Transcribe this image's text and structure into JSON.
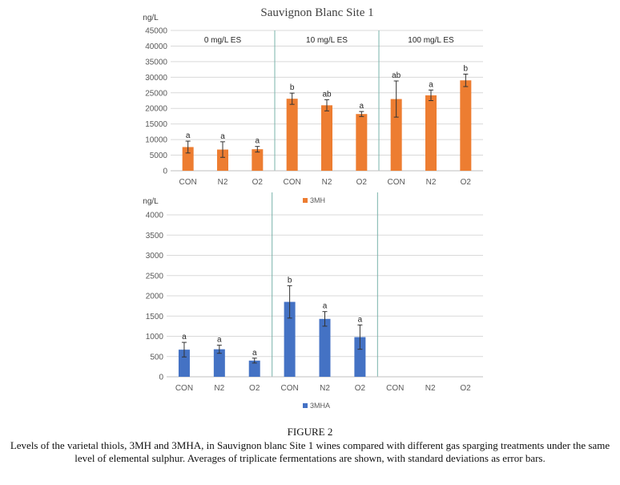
{
  "figure": {
    "label": "FIGURE 2",
    "caption": "Levels of the varietal thiols, 3MH and 3MHA, in Sauvignon blanc Site 1 wines compared with different gas sparging treatments under the same level of elemental sulphur. Averages of triplicate fermentations are shown, with standard deviations as error bars."
  },
  "chart_data": [
    {
      "type": "bar",
      "title": "Sauvignon Blanc Site 1",
      "ylabel": "ng/L",
      "ylim": [
        0,
        45000
      ],
      "yticks": [
        "0",
        "5000",
        "10000",
        "15000",
        "20000",
        "25000",
        "30000",
        "35000",
        "40000",
        "45000"
      ],
      "groups": [
        "0 mg/L ES",
        "10 mg/L ES",
        "100 mg/L ES"
      ],
      "categories": [
        "CON",
        "N2",
        "O2",
        "CON",
        "N2",
        "O2",
        "CON",
        "N2",
        "O2"
      ],
      "series": [
        {
          "name": "3MH",
          "color": "#ed7d31",
          "values": [
            7600,
            6800,
            6900,
            23100,
            21000,
            18200,
            23000,
            24200,
            29000
          ],
          "errors": [
            1900,
            2500,
            900,
            1800,
            1800,
            800,
            5800,
            1700,
            2000
          ],
          "labels": [
            "a",
            "a",
            "a",
            "b",
            "ab",
            "a",
            "ab",
            "a",
            "b"
          ]
        }
      ],
      "legend": "bottom",
      "grid": true
    },
    {
      "type": "bar",
      "ylabel": "ng/L",
      "ylim": [
        0,
        4000
      ],
      "yticks": [
        "0",
        "500",
        "1000",
        "1500",
        "2000",
        "2500",
        "3000",
        "3500",
        "4000"
      ],
      "categories": [
        "CON",
        "N2",
        "O2",
        "CON",
        "N2",
        "O2",
        "CON",
        "N2",
        "O2"
      ],
      "series": [
        {
          "name": "3MHA",
          "color": "#4472c4",
          "values": [
            670,
            680,
            400,
            1850,
            1430,
            980,
            null,
            null,
            null
          ],
          "errors": [
            180,
            100,
            60,
            400,
            180,
            300,
            null,
            null,
            null
          ],
          "labels": [
            "a",
            "a",
            "a",
            "b",
            "a",
            "a",
            null,
            null,
            null
          ]
        }
      ],
      "legend": "bottom",
      "grid": true
    }
  ]
}
